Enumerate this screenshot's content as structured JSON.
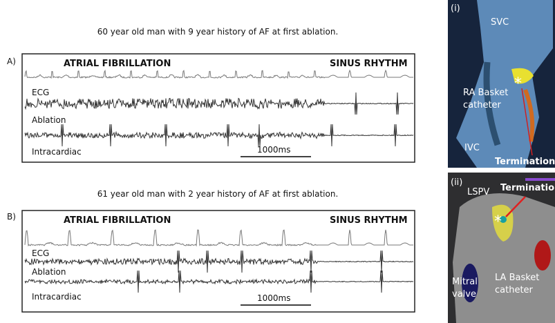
{
  "panels": [
    {
      "label": "A)",
      "caption": "60 year old man with 9 year history of AF at first ablation.",
      "left_rhythm": "ATRIAL FIBRILLATION",
      "right_rhythm": "SINUS RHYTHM",
      "traces": [
        "ECG",
        "Ablation",
        "Intracardiac"
      ],
      "scale": "1000ms"
    },
    {
      "label": "B)",
      "caption": "61 year old man with 2 year history of AF at first ablation.",
      "left_rhythm": "ATRIAL FIBRILLATION",
      "right_rhythm": "SINUS RHYTHM",
      "traces": [
        "ECG",
        "Ablation",
        "Intracardiac"
      ],
      "scale": "1000ms"
    }
  ],
  "images": [
    {
      "label": "(i)",
      "annotations": [
        "SVC",
        "*",
        "RA Basket",
        "catheter",
        "IVC",
        "Termination"
      ]
    },
    {
      "label": "(ii)",
      "annotations": [
        "LSPV",
        "Termination",
        "*",
        "Mitral",
        "valve",
        "LA Basket",
        "catheter"
      ]
    }
  ]
}
